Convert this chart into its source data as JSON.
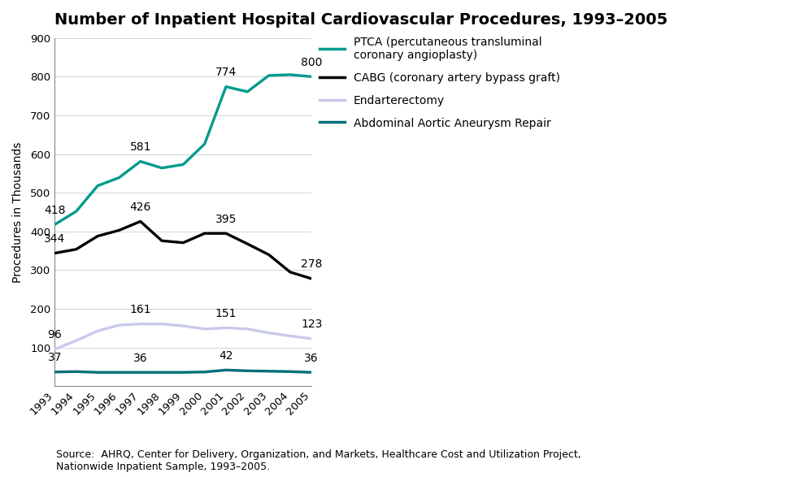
{
  "title": "Number of Inpatient Hospital Cardiovascular Procedures, 1993–2005",
  "ylabel": "Procedures in Thousands",
  "years": [
    1993,
    1994,
    1995,
    1996,
    1997,
    1998,
    1999,
    2000,
    2001,
    2002,
    2003,
    2004,
    2005
  ],
  "series": [
    {
      "name": "PTCA (percutaneous transluminal\ncoronary angioplasty)",
      "color": "#009b8d",
      "linewidth": 2.4,
      "values": [
        418,
        452,
        518,
        539,
        581,
        564,
        573,
        626,
        774,
        761,
        803,
        805,
        800
      ],
      "annot_years": [
        1993,
        1997,
        2001,
        2005
      ],
      "annot_vals": [
        418,
        581,
        774,
        800
      ],
      "annot_offsets": [
        22,
        22,
        22,
        22
      ]
    },
    {
      "name": "CABG (coronary artery bypass graft)",
      "color": "#000000",
      "linewidth": 2.4,
      "values": [
        344,
        354,
        388,
        403,
        426,
        376,
        371,
        395,
        395,
        368,
        340,
        295,
        278
      ],
      "annot_years": [
        1993,
        1997,
        2001,
        2005
      ],
      "annot_vals": [
        344,
        426,
        395,
        278
      ],
      "annot_offsets": [
        22,
        22,
        22,
        22
      ]
    },
    {
      "name": "Endarterectomy",
      "color": "#c8caec",
      "linewidth": 2.4,
      "values": [
        96,
        118,
        143,
        158,
        161,
        161,
        156,
        148,
        151,
        148,
        138,
        130,
        123
      ],
      "annot_years": [
        1993,
        1997,
        2001,
        2005
      ],
      "annot_vals": [
        96,
        161,
        151,
        123
      ],
      "annot_offsets": [
        22,
        22,
        22,
        22
      ]
    },
    {
      "name": "Abdominal Aortic Aneurysm Repair",
      "color": "#006f7a",
      "linewidth": 2.4,
      "values": [
        37,
        38,
        36,
        36,
        36,
        36,
        36,
        37,
        42,
        40,
        39,
        38,
        36
      ],
      "annot_years": [
        1993,
        1997,
        2001,
        2005
      ],
      "annot_vals": [
        37,
        36,
        42,
        36
      ],
      "annot_offsets": [
        22,
        22,
        22,
        22
      ]
    }
  ],
  "ylim": [
    0,
    900
  ],
  "yticks": [
    0,
    100,
    200,
    300,
    400,
    500,
    600,
    700,
    800,
    900
  ],
  "source_text": "Source:  AHRQ, Center for Delivery, Organization, and Markets, Healthcare Cost and Utilization Project,\nNationwide Inpatient Sample, 1993–2005.",
  "background_color": "#ffffff",
  "title_fontsize": 14,
  "label_fontsize": 10,
  "annot_fontsize": 10,
  "tick_fontsize": 9.5,
  "legend_fontsize": 10,
  "source_fontsize": 9
}
